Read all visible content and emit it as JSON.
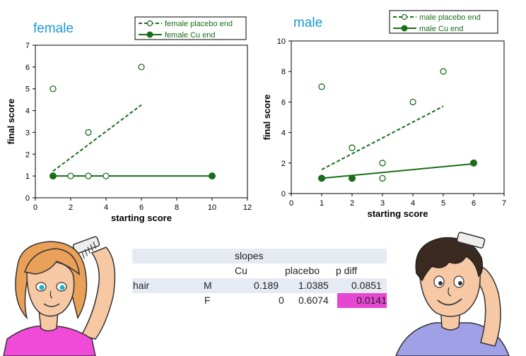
{
  "colors": {
    "series": "#1a6e1a",
    "title": "#1a9ad6",
    "highlight": "#e646d2",
    "table_bg": "#e6ebf3"
  },
  "chart_data": [
    {
      "type": "scatter",
      "title": "female",
      "xlabel": "starting score",
      "ylabel": "final score",
      "xlim": [
        0,
        12
      ],
      "ylim": [
        0,
        7
      ],
      "x_ticks": [
        "0",
        "2",
        "4",
        "6",
        "8",
        "10",
        "12"
      ],
      "y_ticks": [
        "0",
        "1",
        "2",
        "3",
        "4",
        "5",
        "6",
        "7"
      ],
      "legend_position": "top-right",
      "series": [
        {
          "name": "female placebo end",
          "marker": "open-circle",
          "line": "dashed",
          "points": [
            [
              1,
              5
            ],
            [
              1,
              1
            ],
            [
              2,
              1
            ],
            [
              3,
              3
            ],
            [
              3,
              1
            ],
            [
              4,
              1
            ],
            [
              6,
              6
            ]
          ],
          "trend": [
            [
              1,
              1.22
            ],
            [
              6,
              4.26
            ]
          ]
        },
        {
          "name": "female Cu end",
          "marker": "filled-circle",
          "line": "solid",
          "points": [
            [
              1,
              1
            ],
            [
              10,
              1
            ]
          ],
          "trend": [
            [
              1,
              1
            ],
            [
              10,
              1
            ]
          ]
        }
      ]
    },
    {
      "type": "scatter",
      "title": "male",
      "xlabel": "starting score",
      "ylabel": "final score",
      "xlim": [
        0,
        7
      ],
      "ylim": [
        0,
        10
      ],
      "x_ticks": [
        "0",
        "1",
        "2",
        "3",
        "4",
        "5",
        "6",
        "7"
      ],
      "y_ticks": [
        "0",
        "2",
        "4",
        "6",
        "8",
        "10"
      ],
      "legend_position": "top-right",
      "series": [
        {
          "name": "male placebo end",
          "marker": "open-circle",
          "line": "dashed",
          "points": [
            [
              1,
              7
            ],
            [
              2,
              3
            ],
            [
              3,
              2
            ],
            [
              3,
              1
            ],
            [
              4,
              6
            ],
            [
              5,
              8
            ]
          ],
          "trend": [
            [
              1,
              1.57
            ],
            [
              5,
              5.72
            ]
          ]
        },
        {
          "name": "male Cu end",
          "marker": "filled-circle",
          "line": "solid",
          "points": [
            [
              1,
              1
            ],
            [
              2,
              1
            ],
            [
              6,
              2
            ]
          ],
          "trend": [
            [
              1,
              1
            ],
            [
              6,
              1.95
            ]
          ]
        }
      ]
    }
  ],
  "table": {
    "title": "slopes",
    "headers": [
      "Cu",
      "placebo",
      "p diff"
    ],
    "row_label": "hair",
    "rows": [
      {
        "sex": "M",
        "cu": "0.189",
        "placebo": "1.0385",
        "p_diff": "0.0851"
      },
      {
        "sex": "F",
        "cu": "0",
        "placebo": "0.6074",
        "p_diff": "0.0141"
      }
    ]
  }
}
